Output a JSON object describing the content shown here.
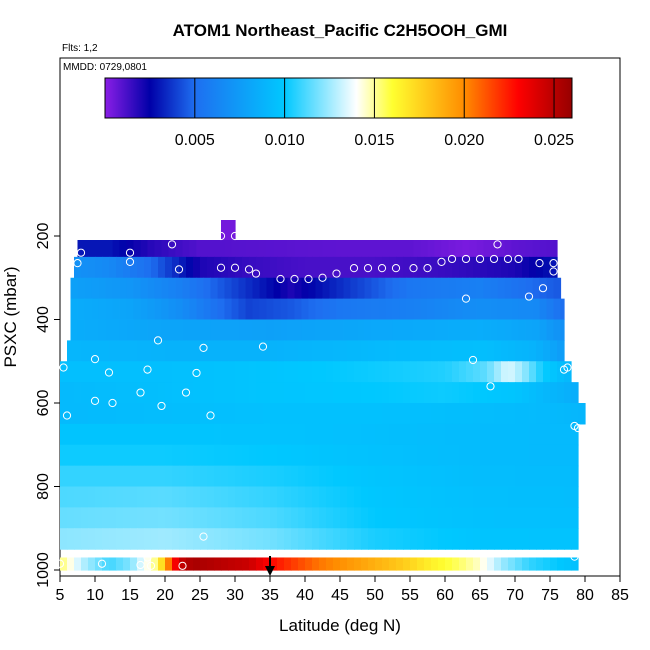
{
  "chart_data": {
    "type": "heatmap",
    "title": "ATOM1 Northeast_Pacific C2H5OOH_GMI",
    "flights_label": "Flts: 1,2",
    "date_label": "MMDD: 0729,0801",
    "xlabel": "Latitude (deg N)",
    "ylabel": "PSXC (mbar)",
    "xlim": [
      5,
      85
    ],
    "ylim": [
      1000,
      0
    ],
    "x_ticks": [
      "5",
      "10",
      "15",
      "20",
      "25",
      "30",
      "35",
      "40",
      "45",
      "50",
      "55",
      "60",
      "65",
      "70",
      "75",
      "80",
      "85"
    ],
    "y_ticks": [
      "200",
      "400",
      "600",
      "800",
      "1000"
    ],
    "colorbar": {
      "range": [
        0,
        0.026
      ],
      "ticks": [
        "0.005",
        "0.010",
        "0.015",
        "0.020",
        "0.025"
      ],
      "colors": [
        "#8a1ee6",
        "#0000a8",
        "#1e6ef0",
        "#00c8ff",
        "#ffffff",
        "#ffff30",
        "#ff8c00",
        "#ff0000",
        "#960000"
      ]
    },
    "marker_latitude": 35,
    "grid": false,
    "legend": "none",
    "rows": [
      {
        "p": 200,
        "lat_range": [
          28,
          30
        ],
        "profile": [
          [
            28,
            0.0004
          ],
          [
            30,
            0.0004
          ]
        ]
      },
      {
        "p": 235,
        "lat_range": [
          7.5,
          76
        ],
        "profile": [
          [
            7.5,
            0.003
          ],
          [
            12,
            0.003
          ],
          [
            18,
            0.0018
          ],
          [
            25,
            0.001
          ],
          [
            35,
            0.0009
          ],
          [
            45,
            0.0008
          ],
          [
            55,
            0.0008
          ],
          [
            63,
            0.0003
          ],
          [
            70,
            0.0008
          ],
          [
            76,
            0.001
          ]
        ]
      },
      {
        "p": 275,
        "lat_range": [
          7,
          76
        ],
        "profile": [
          [
            7,
            0.007
          ],
          [
            12,
            0.0065
          ],
          [
            18,
            0.005
          ],
          [
            25,
            0.002
          ],
          [
            32,
            0.0015
          ],
          [
            40,
            0.0012
          ],
          [
            50,
            0.0012
          ],
          [
            60,
            0.0015
          ],
          [
            70,
            0.002
          ],
          [
            76,
            0.003
          ]
        ]
      },
      {
        "p": 325,
        "lat_range": [
          6.5,
          76.5
        ],
        "profile": [
          [
            6.5,
            0.0078
          ],
          [
            15,
            0.0072
          ],
          [
            22,
            0.006
          ],
          [
            30,
            0.004
          ],
          [
            38,
            0.002
          ],
          [
            45,
            0.0035
          ],
          [
            55,
            0.0055
          ],
          [
            65,
            0.006
          ],
          [
            72,
            0.005
          ],
          [
            76.5,
            0.0045
          ]
        ]
      },
      {
        "p": 375,
        "lat_range": [
          6.5,
          77
        ],
        "profile": [
          [
            6.5,
            0.0085
          ],
          [
            15,
            0.008
          ],
          [
            22,
            0.0068
          ],
          [
            28,
            0.005
          ],
          [
            32,
            0.004
          ],
          [
            38,
            0.0045
          ],
          [
            45,
            0.0055
          ],
          [
            55,
            0.006
          ],
          [
            65,
            0.0068
          ],
          [
            73,
            0.0065
          ],
          [
            77,
            0.005
          ]
        ]
      },
      {
        "p": 425,
        "lat_range": [
          6.5,
          77
        ],
        "profile": [
          [
            6.5,
            0.0085
          ],
          [
            20,
            0.008
          ],
          [
            35,
            0.0078
          ],
          [
            50,
            0.0082
          ],
          [
            65,
            0.0085
          ],
          [
            73,
            0.008
          ],
          [
            77,
            0.0068
          ]
        ]
      },
      {
        "p": 475,
        "lat_range": [
          6,
          77
        ],
        "profile": [
          [
            6,
            0.009
          ],
          [
            20,
            0.0088
          ],
          [
            35,
            0.0088
          ],
          [
            50,
            0.0092
          ],
          [
            65,
            0.0095
          ],
          [
            73,
            0.0088
          ],
          [
            77,
            0.0075
          ]
        ]
      },
      {
        "p": 525,
        "lat_range": [
          5,
          78
        ],
        "profile": [
          [
            5,
            0.0095
          ],
          [
            20,
            0.0095
          ],
          [
            35,
            0.0098
          ],
          [
            50,
            0.0102
          ],
          [
            60,
            0.0105
          ],
          [
            66,
            0.0115
          ],
          [
            69,
            0.0135
          ],
          [
            71,
            0.0125
          ],
          [
            74,
            0.0102
          ],
          [
            78,
            0.009
          ]
        ]
      },
      {
        "p": 575,
        "lat_range": [
          5,
          79
        ],
        "profile": [
          [
            5,
            0.0092
          ],
          [
            20,
            0.0095
          ],
          [
            35,
            0.0098
          ],
          [
            50,
            0.01
          ],
          [
            60,
            0.0102
          ],
          [
            70,
            0.0098
          ],
          [
            75,
            0.009
          ],
          [
            79,
            0.0085
          ]
        ]
      },
      {
        "p": 625,
        "lat_range": [
          5,
          80
        ],
        "profile": [
          [
            5,
            0.0092
          ],
          [
            20,
            0.0094
          ],
          [
            35,
            0.0096
          ],
          [
            50,
            0.0096
          ],
          [
            65,
            0.0094
          ],
          [
            75,
            0.0092
          ],
          [
            80,
            0.009
          ]
        ]
      },
      {
        "p": 675,
        "lat_range": [
          5,
          79
        ],
        "profile": [
          [
            5,
            0.0098
          ],
          [
            20,
            0.0098
          ],
          [
            35,
            0.0097
          ],
          [
            50,
            0.0095
          ],
          [
            65,
            0.0093
          ],
          [
            79,
            0.0092
          ]
        ]
      },
      {
        "p": 725,
        "lat_range": [
          5,
          79
        ],
        "profile": [
          [
            5,
            0.0102
          ],
          [
            20,
            0.0102
          ],
          [
            35,
            0.01
          ],
          [
            50,
            0.0096
          ],
          [
            65,
            0.0093
          ],
          [
            79,
            0.0092
          ]
        ]
      },
      {
        "p": 775,
        "lat_range": [
          5,
          79
        ],
        "profile": [
          [
            5,
            0.0108
          ],
          [
            20,
            0.0108
          ],
          [
            35,
            0.0104
          ],
          [
            50,
            0.0098
          ],
          [
            65,
            0.0094
          ],
          [
            79,
            0.0093
          ]
        ]
      },
      {
        "p": 825,
        "lat_range": [
          5,
          79
        ],
        "profile": [
          [
            5,
            0.0112
          ],
          [
            20,
            0.0114
          ],
          [
            35,
            0.0108
          ],
          [
            50,
            0.0099
          ],
          [
            65,
            0.0095
          ],
          [
            79,
            0.0094
          ]
        ]
      },
      {
        "p": 875,
        "lat_range": [
          5,
          79
        ],
        "profile": [
          [
            5,
            0.0116
          ],
          [
            20,
            0.0118
          ],
          [
            35,
            0.0112
          ],
          [
            50,
            0.01
          ],
          [
            65,
            0.0096
          ],
          [
            79,
            0.0095
          ]
        ]
      },
      {
        "p": 925,
        "lat_range": [
          5,
          79
        ],
        "profile": [
          [
            5,
            0.0122
          ],
          [
            20,
            0.0125
          ],
          [
            35,
            0.0118
          ],
          [
            50,
            0.0104
          ],
          [
            65,
            0.0098
          ],
          [
            79,
            0.0097
          ]
        ]
      },
      {
        "p": 985,
        "lat_range": [
          5,
          79
        ],
        "profile": [
          [
            5,
            0.0155
          ],
          [
            8,
            0.013
          ],
          [
            12,
            0.011
          ],
          [
            15,
            0.012
          ],
          [
            19,
            0.0155
          ],
          [
            21,
            0.022
          ],
          [
            22,
            0.0245
          ],
          [
            24,
            0.0255
          ],
          [
            28,
            0.025
          ],
          [
            32,
            0.0245
          ],
          [
            36,
            0.0225
          ],
          [
            42,
            0.0205
          ],
          [
            48,
            0.0192
          ],
          [
            54,
            0.0178
          ],
          [
            58,
            0.0165
          ],
          [
            62,
            0.0155
          ],
          [
            65,
            0.0145
          ],
          [
            68,
            0.0125
          ],
          [
            72,
            0.0108
          ],
          [
            79,
            0.0095
          ]
        ]
      }
    ],
    "observations": [
      [
        28,
        200
      ],
      [
        30,
        200
      ],
      [
        8,
        240
      ],
      [
        15,
        240
      ],
      [
        21,
        220
      ],
      [
        67.5,
        220
      ],
      [
        7.5,
        265
      ],
      [
        15,
        262
      ],
      [
        22,
        280
      ],
      [
        28,
        276
      ],
      [
        30,
        276
      ],
      [
        32,
        280
      ],
      [
        33,
        290
      ],
      [
        36.5,
        303
      ],
      [
        38.5,
        303
      ],
      [
        40.5,
        303
      ],
      [
        42.5,
        300
      ],
      [
        44.5,
        290
      ],
      [
        47,
        277
      ],
      [
        49,
        277
      ],
      [
        51,
        277
      ],
      [
        53,
        277
      ],
      [
        55.5,
        277
      ],
      [
        57.5,
        277
      ],
      [
        59.5,
        262
      ],
      [
        61,
        255
      ],
      [
        63,
        255
      ],
      [
        65,
        255
      ],
      [
        67,
        255
      ],
      [
        69,
        255
      ],
      [
        70.5,
        255
      ],
      [
        73.5,
        265
      ],
      [
        75.5,
        265
      ],
      [
        75.5,
        285
      ],
      [
        74,
        325
      ],
      [
        72,
        345
      ],
      [
        63,
        350
      ],
      [
        19,
        450
      ],
      [
        25.5,
        468
      ],
      [
        34,
        465
      ],
      [
        10,
        495
      ],
      [
        64,
        497
      ],
      [
        5.5,
        515
      ],
      [
        17.5,
        520
      ],
      [
        12,
        527
      ],
      [
        24.5,
        528
      ],
      [
        77.5,
        515
      ],
      [
        77,
        520
      ],
      [
        66.5,
        560
      ],
      [
        16.5,
        575
      ],
      [
        23,
        575
      ],
      [
        10,
        595
      ],
      [
        12.5,
        600
      ],
      [
        19.5,
        607
      ],
      [
        6,
        630
      ],
      [
        26.5,
        630
      ],
      [
        78.5,
        655
      ],
      [
        79,
        660
      ],
      [
        25.5,
        920
      ],
      [
        78.5,
        968
      ],
      [
        17.5,
        970
      ],
      [
        11,
        985
      ],
      [
        16.5,
        988
      ],
      [
        18,
        990
      ],
      [
        22.5,
        990
      ],
      [
        5,
        985
      ]
    ]
  }
}
